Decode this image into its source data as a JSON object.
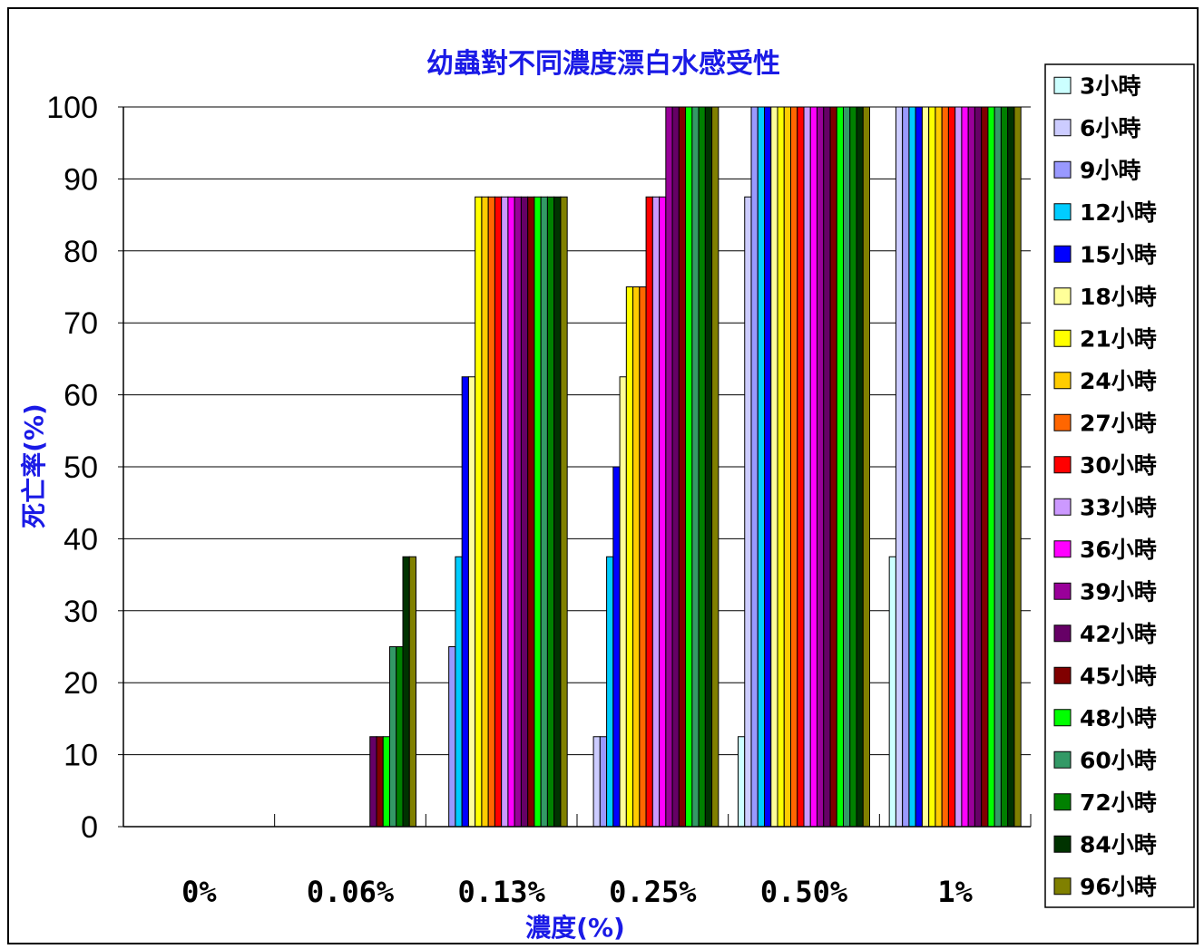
{
  "chart_data": {
    "type": "bar",
    "title": "幼蟲對不同濃度漂白水感受性",
    "xlabel": "濃度(%)",
    "ylabel": "死亡率(%)",
    "ylim": [
      0,
      100
    ],
    "yticks": [
      0,
      10,
      20,
      30,
      40,
      50,
      60,
      70,
      80,
      90,
      100
    ],
    "grid": true,
    "legend_position": "right",
    "categories": [
      "0%",
      "0.06%",
      "0.13%",
      "0.25%",
      "0.50%",
      "1%"
    ],
    "series": [
      {
        "name": "3小時",
        "color": "#ccffff",
        "values": [
          0,
          0,
          0,
          0,
          12.5,
          37.5
        ]
      },
      {
        "name": "6小時",
        "color": "#ccccff",
        "values": [
          0,
          0,
          0,
          12.5,
          87.5,
          100
        ]
      },
      {
        "name": "9小時",
        "color": "#9999ff",
        "values": [
          0,
          0,
          25,
          12.5,
          100,
          100
        ]
      },
      {
        "name": "12小時",
        "color": "#00ccff",
        "values": [
          0,
          0,
          37.5,
          37.5,
          100,
          100
        ]
      },
      {
        "name": "15小時",
        "color": "#0000ff",
        "values": [
          0,
          0,
          62.5,
          50,
          100,
          100
        ]
      },
      {
        "name": "18小時",
        "color": "#ffff99",
        "values": [
          0,
          0,
          62.5,
          62.5,
          100,
          100
        ]
      },
      {
        "name": "21小時",
        "color": "#ffff00",
        "values": [
          0,
          0,
          87.5,
          75,
          100,
          100
        ]
      },
      {
        "name": "24小時",
        "color": "#ffcc00",
        "values": [
          0,
          0,
          87.5,
          75,
          100,
          100
        ]
      },
      {
        "name": "27小時",
        "color": "#ff6600",
        "values": [
          0,
          0,
          87.5,
          75,
          100,
          100
        ]
      },
      {
        "name": "30小時",
        "color": "#ff0000",
        "values": [
          0,
          0,
          87.5,
          87.5,
          100,
          100
        ]
      },
      {
        "name": "33小時",
        "color": "#cc99ff",
        "values": [
          0,
          0,
          87.5,
          87.5,
          100,
          100
        ]
      },
      {
        "name": "36小時",
        "color": "#ff00ff",
        "values": [
          0,
          0,
          87.5,
          87.5,
          100,
          100
        ]
      },
      {
        "name": "39小時",
        "color": "#990099",
        "values": [
          0,
          0,
          87.5,
          100,
          100,
          100
        ]
      },
      {
        "name": "42小時",
        "color": "#660066",
        "values": [
          0,
          12.5,
          87.5,
          100,
          100,
          100
        ]
      },
      {
        "name": "45小時",
        "color": "#800000",
        "values": [
          0,
          12.5,
          87.5,
          100,
          100,
          100
        ]
      },
      {
        "name": "48小時",
        "color": "#00ff00",
        "values": [
          0,
          12.5,
          87.5,
          100,
          100,
          100
        ]
      },
      {
        "name": "60小時",
        "color": "#339966",
        "values": [
          0,
          25,
          87.5,
          100,
          100,
          100
        ]
      },
      {
        "name": "72小時",
        "color": "#008000",
        "values": [
          0,
          25,
          87.5,
          100,
          100,
          100
        ]
      },
      {
        "name": "84小時",
        "color": "#003300",
        "values": [
          0,
          37.5,
          87.5,
          100,
          100,
          100
        ]
      },
      {
        "name": "96小時",
        "color": "#808000",
        "values": [
          0,
          37.5,
          87.5,
          100,
          100,
          100
        ]
      }
    ]
  }
}
